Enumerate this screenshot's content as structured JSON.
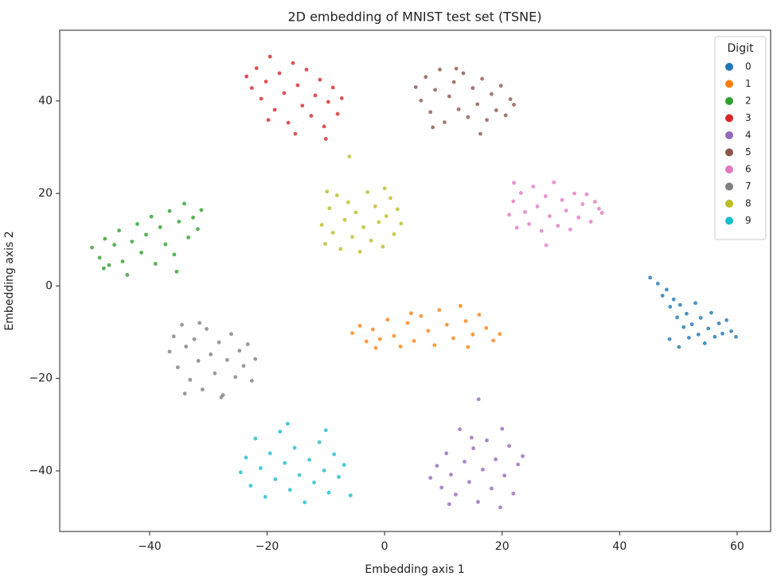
{
  "chart_data": {
    "type": "scatter",
    "title": "2D embedding of MNIST test set (TSNE)",
    "x_label": "Embedding axis 1",
    "y_label": "Embedding axis 2",
    "legend_title": "Digit",
    "legend_position": "upper right",
    "grid": false,
    "xlim": [
      -55.3,
      65.7
    ],
    "ylim": [
      -53.1,
      55.3
    ],
    "xticks": [
      {
        "value": -40,
        "label": "−40"
      },
      {
        "value": -20,
        "label": "−20"
      },
      0,
      20,
      40,
      60
    ],
    "yticks": [
      {
        "value": -40,
        "label": "−40"
      },
      {
        "value": -20,
        "label": "−20"
      },
      0,
      20,
      40
    ],
    "series": [
      {
        "name": "0",
        "color": "#1f77b4",
        "x": [
          45.2,
          46.5,
          47.3,
          48.0,
          48.6,
          49.2,
          49.8,
          50.3,
          50.9,
          51.4,
          51.8,
          52.3,
          52.9,
          53.4,
          53.8,
          54.5,
          55.1,
          55.6,
          56.2,
          56.9,
          57.5,
          58.2,
          59.0,
          59.8,
          48.5,
          50.1
        ],
        "y": [
          1.8,
          0.5,
          -2.1,
          -0.8,
          -4.5,
          -2.9,
          -6.8,
          -4.1,
          -8.9,
          -6.0,
          -11.2,
          -8.3,
          -3.7,
          -10.5,
          -6.9,
          -12.4,
          -9.2,
          -5.8,
          -11.0,
          -8.1,
          -10.3,
          -7.4,
          -9.8,
          -11.0,
          -11.5,
          -13.2
        ]
      },
      {
        "name": "1",
        "color": "#ff7f0e",
        "x": [
          -5.5,
          -4.2,
          -3.1,
          -2.0,
          -0.8,
          0.5,
          1.6,
          2.7,
          3.9,
          5.0,
          6.2,
          7.4,
          8.5,
          9.3,
          10.6,
          11.7,
          12.9,
          13.8,
          15.0,
          16.1,
          17.3,
          18.5,
          19.6,
          -1.5,
          4.5,
          14.2
        ],
        "y": [
          -10.2,
          -8.6,
          -12.0,
          -9.4,
          -11.5,
          -7.3,
          -10.8,
          -13.1,
          -8.0,
          -11.9,
          -6.5,
          -9.7,
          -12.8,
          -5.2,
          -8.4,
          -11.3,
          -4.3,
          -7.6,
          -10.5,
          -6.2,
          -9.1,
          -11.8,
          -10.4,
          -13.4,
          -5.9,
          -13.2
        ]
      },
      {
        "name": "2",
        "color": "#2ca02c",
        "x": [
          -49.8,
          -48.5,
          -47.6,
          -46.9,
          -46.0,
          -45.2,
          -44.6,
          -43.8,
          -43.0,
          -42.1,
          -41.4,
          -40.6,
          -39.7,
          -39.0,
          -38.2,
          -37.3,
          -36.6,
          -35.8,
          -35.0,
          -34.1,
          -33.4,
          -32.6,
          -31.8,
          -31.2,
          -47.8,
          -35.4
        ],
        "y": [
          8.3,
          6.1,
          10.2,
          4.5,
          8.9,
          12.0,
          5.3,
          2.4,
          9.6,
          13.4,
          7.2,
          11.1,
          15.0,
          4.8,
          12.7,
          9.0,
          16.2,
          6.8,
          13.9,
          17.8,
          10.5,
          14.8,
          12.3,
          16.4,
          3.8,
          3.1
        ]
      },
      {
        "name": "3",
        "color": "#d62728",
        "x": [
          -23.5,
          -22.6,
          -21.8,
          -21.0,
          -20.2,
          -19.5,
          -18.7,
          -17.9,
          -17.1,
          -16.4,
          -15.6,
          -14.8,
          -14.0,
          -13.3,
          -12.5,
          -11.8,
          -11.0,
          -10.3,
          -9.6,
          -8.8,
          -8.0,
          -7.3,
          -19.8,
          -15.2,
          -10.0
        ],
        "y": [
          45.3,
          42.8,
          47.1,
          40.5,
          44.2,
          49.6,
          38.1,
          46.0,
          41.7,
          35.3,
          48.2,
          43.4,
          39.0,
          46.8,
          36.8,
          41.2,
          44.6,
          34.5,
          39.8,
          42.9,
          37.2,
          40.6,
          35.9,
          32.9,
          31.8
        ]
      },
      {
        "name": "4",
        "color": "#9467bd",
        "x": [
          7.8,
          8.9,
          9.7,
          10.5,
          11.3,
          12.1,
          12.8,
          13.6,
          14.4,
          15.1,
          15.9,
          16.7,
          17.4,
          18.2,
          18.9,
          19.7,
          20.4,
          21.2,
          21.9,
          22.7,
          23.5,
          11.0,
          14.8,
          20.0,
          16.0
        ],
        "y": [
          -41.5,
          -38.9,
          -43.6,
          -36.2,
          -40.8,
          -45.1,
          -31.0,
          -38.0,
          -42.4,
          -35.1,
          -46.7,
          -39.7,
          -33.4,
          -43.8,
          -37.5,
          -47.9,
          -41.0,
          -34.6,
          -44.9,
          -38.6,
          -36.8,
          -47.2,
          -32.8,
          -30.9,
          -24.5
        ]
      },
      {
        "name": "5",
        "color": "#8c564b",
        "x": [
          5.3,
          6.2,
          7.0,
          7.8,
          8.6,
          9.4,
          10.2,
          11.0,
          11.8,
          12.6,
          13.4,
          14.2,
          15.0,
          15.8,
          16.6,
          17.4,
          18.2,
          19.0,
          19.8,
          20.6,
          21.4,
          22.0,
          8.2,
          16.3,
          12.2
        ],
        "y": [
          43.0,
          40.1,
          45.2,
          37.6,
          42.4,
          46.8,
          35.4,
          41.0,
          44.1,
          38.2,
          46.0,
          36.5,
          42.8,
          39.3,
          44.8,
          35.9,
          41.5,
          38.0,
          43.3,
          36.9,
          40.4,
          39.2,
          34.3,
          32.9,
          47.0
        ]
      },
      {
        "name": "6",
        "color": "#e377c2",
        "x": [
          21.2,
          21.9,
          22.5,
          23.2,
          23.9,
          24.6,
          25.3,
          26.0,
          26.7,
          27.4,
          28.1,
          28.8,
          29.5,
          30.2,
          30.9,
          31.6,
          32.3,
          33.0,
          33.7,
          34.4,
          35.1,
          35.8,
          36.5,
          37.0,
          27.5,
          22.0
        ],
        "y": [
          15.4,
          18.3,
          12.6,
          20.1,
          16.0,
          13.4,
          21.5,
          17.2,
          11.9,
          19.4,
          15.1,
          22.4,
          13.0,
          18.6,
          16.3,
          12.2,
          20.0,
          14.8,
          17.7,
          19.8,
          13.9,
          18.2,
          16.7,
          15.8,
          8.8,
          22.3
        ]
      },
      {
        "name": "7",
        "color": "#7f7f7f",
        "x": [
          -36.6,
          -35.9,
          -35.2,
          -34.5,
          -33.8,
          -33.1,
          -32.4,
          -31.7,
          -31.0,
          -30.3,
          -29.6,
          -28.9,
          -28.2,
          -27.5,
          -26.8,
          -26.1,
          -25.4,
          -24.7,
          -24.0,
          -23.3,
          -22.6,
          -22.0,
          -31.5,
          -27.8,
          -34.0
        ],
        "y": [
          -14.2,
          -10.9,
          -17.6,
          -8.4,
          -13.1,
          -20.3,
          -11.5,
          -16.2,
          -22.4,
          -9.3,
          -14.8,
          -18.9,
          -12.2,
          -23.6,
          -16.0,
          -10.4,
          -19.7,
          -14.0,
          -17.3,
          -12.6,
          -20.5,
          -15.8,
          -8.0,
          -24.1,
          -23.3
        ]
      },
      {
        "name": "8",
        "color": "#bcbd22",
        "x": [
          -10.7,
          -10.1,
          -9.4,
          -8.8,
          -8.1,
          -7.5,
          -6.8,
          -6.2,
          -5.5,
          -4.9,
          -4.2,
          -3.6,
          -2.9,
          -2.3,
          -1.6,
          -1.0,
          -0.3,
          0.3,
          1.0,
          1.6,
          2.2,
          2.8,
          -9.8,
          -6.0,
          0.0
        ],
        "y": [
          13.2,
          9.1,
          16.8,
          11.5,
          19.6,
          8.0,
          14.3,
          18.1,
          10.6,
          15.9,
          7.4,
          12.7,
          20.3,
          9.8,
          17.2,
          13.8,
          8.5,
          15.1,
          19.0,
          11.2,
          16.6,
          13.5,
          20.4,
          28.0,
          21.1
        ]
      },
      {
        "name": "9",
        "color": "#17becf",
        "x": [
          -24.5,
          -23.6,
          -22.8,
          -22.0,
          -21.1,
          -20.3,
          -19.5,
          -18.6,
          -17.8,
          -17.0,
          -16.1,
          -15.3,
          -14.5,
          -13.6,
          -12.8,
          -12.0,
          -11.1,
          -10.3,
          -9.5,
          -8.6,
          -7.8,
          -6.9,
          -5.8,
          -10.0,
          -16.5
        ],
        "y": [
          -40.3,
          -37.1,
          -43.2,
          -33.0,
          -39.4,
          -45.6,
          -36.2,
          -41.8,
          -31.5,
          -38.3,
          -44.1,
          -35.0,
          -40.9,
          -46.8,
          -37.6,
          -42.5,
          -33.8,
          -39.9,
          -44.7,
          -36.4,
          -41.3,
          -38.7,
          -45.3,
          -31.2,
          -29.8
        ]
      }
    ]
  }
}
